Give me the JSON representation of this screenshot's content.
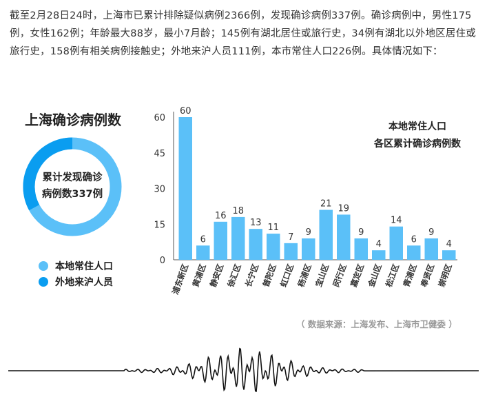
{
  "intro": "截至2月28日24时，上海市已累计排除疑似病例2366例，发现确诊病例337例。确诊病例中，男性175例，女性162例；年龄最大88岁，最小7月龄；145例有湖北居住或旅行史，34例有湖北以外地区居住或旅行史，158例有相关病例接触史；外地来沪人员111例，本市常住人口226例。具体情况如下：",
  "left_panel": {
    "title": "上海确诊病例数",
    "center_line1": "累计发现确诊",
    "center_line2": "病例数337例",
    "legend": [
      {
        "label": "本地常住人口",
        "value": 226,
        "color": "#5bc0f8"
      },
      {
        "label": "外地来沪人员",
        "value": 111,
        "color": "#0a9df0"
      }
    ]
  },
  "source": "（ 数据来源：上海发布、上海市卫健委 ）",
  "chart_data": {
    "type": "bar",
    "title_line1": "本地常住人口",
    "title_line2": "各区累计确诊病例数",
    "categories": [
      "浦东新区",
      "黄浦区",
      "静安区",
      "徐汇区",
      "长宁区",
      "普陀区",
      "虹口区",
      "杨浦区",
      "宝山区",
      "闵行区",
      "嘉定区",
      "金山区",
      "松江区",
      "青浦区",
      "奉贤区",
      "崇明区"
    ],
    "values": [
      60,
      6,
      16,
      18,
      13,
      11,
      7,
      9,
      21,
      19,
      9,
      4,
      14,
      6,
      9,
      4
    ],
    "yticks": [
      0,
      15,
      30,
      45,
      60
    ],
    "ylim": [
      0,
      60
    ],
    "bar_color": "#5bc0f8",
    "grid": false
  }
}
